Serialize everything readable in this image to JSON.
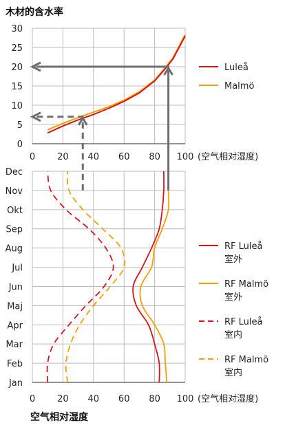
{
  "chart_data": [
    {
      "type": "line",
      "title": "木材的含水率",
      "xlabel": "(空气相对湿度)",
      "xlim": [
        0,
        100
      ],
      "ylim": [
        0,
        30
      ],
      "xticks": [
        "0",
        "20",
        "40",
        "60",
        "80",
        "100"
      ],
      "yticks": [
        "0",
        "5",
        "10",
        "15",
        "20",
        "25",
        "30"
      ],
      "grid": true,
      "legend_position": "right",
      "series": [
        {
          "name": "Luleå",
          "color": "#d9141b",
          "x": [
            10,
            20,
            30,
            40,
            50,
            60,
            70,
            80,
            87,
            92,
            100
          ],
          "y": [
            2.8,
            4.6,
            6.2,
            7.6,
            9.2,
            11.0,
            13.2,
            16.3,
            19.5,
            22.0,
            28.0
          ]
        },
        {
          "name": "Malmö",
          "color": "#f5a000",
          "x": [
            10,
            20,
            30,
            40,
            50,
            60,
            70,
            80,
            87,
            92,
            100
          ],
          "y": [
            3.6,
            5.3,
            6.8,
            8.2,
            9.6,
            11.3,
            13.5,
            16.5,
            19.8,
            22.3,
            28.3
          ]
        }
      ],
      "annotations": [
        {
          "label": "arrow-solid",
          "from_x": 89,
          "y": 20
        },
        {
          "label": "arrow-dashed",
          "from_x": 33,
          "y": 7
        }
      ]
    },
    {
      "type": "line",
      "xlabel": "空气相对湿度",
      "xunit": "(空气相对湿度)",
      "xlim": [
        0,
        100
      ],
      "xticks": [
        "0",
        "20",
        "40",
        "60",
        "80",
        "100"
      ],
      "categories": [
        "Jan",
        "Feb",
        "Mar",
        "Apr",
        "Maj",
        "Jun",
        "Jul",
        "Aug",
        "Sep",
        "Okt",
        "Nov",
        "Dec"
      ],
      "grid": true,
      "legend_position": "right",
      "series": [
        {
          "name": "RF Luleå\n室外",
          "color": "#d9141b",
          "dash": false,
          "values": [
            83,
            83,
            80,
            76,
            68,
            66,
            72,
            78,
            83,
            85,
            86,
            86
          ]
        },
        {
          "name": "RF Malmö\n室外",
          "color": "#f5a000",
          "dash": false,
          "values": [
            88,
            87,
            86,
            80,
            72,
            71,
            78,
            80,
            85,
            89,
            89,
            89
          ]
        },
        {
          "name": "RF Luleå\n室内",
          "color": "#d9141b",
          "dash": true,
          "values": [
            10,
            10,
            14,
            24,
            35,
            47,
            53,
            48,
            37,
            22,
            12,
            10
          ]
        },
        {
          "name": "RF Malmö\n室内",
          "color": "#f5a000",
          "dash": true,
          "values": [
            23,
            22,
            25,
            31,
            40,
            51,
            60,
            58,
            46,
            33,
            24,
            23
          ]
        }
      ],
      "annotations": [
        {
          "label": "arrow-solid",
          "x": 89,
          "from": "Nov"
        },
        {
          "label": "arrow-dashed",
          "x": 33,
          "from": "Nov"
        }
      ]
    }
  ]
}
